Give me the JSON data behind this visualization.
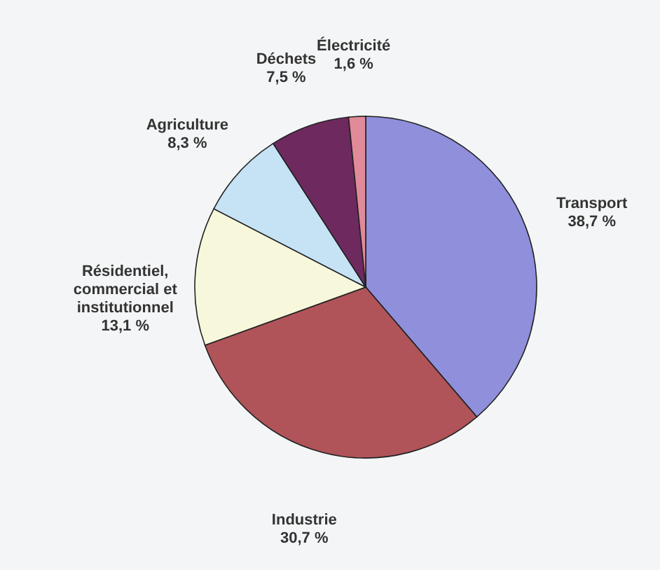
{
  "chart_data": {
    "type": "pie",
    "categories": [
      "Transport",
      "Industrie",
      "Résidentiel,\ncommercial et\ninstitutionnel",
      "Agriculture",
      "Déchets",
      "Électricité"
    ],
    "values": [
      38.7,
      30.7,
      13.1,
      8.3,
      7.5,
      1.6
    ],
    "value_labels": [
      "38,7 %",
      "30,7 %",
      "13,1 %",
      "8,3 %",
      "7,5 %",
      "1,6 %"
    ],
    "colors": [
      "#8f8fdc",
      "#b0545a",
      "#f7f7dc",
      "#c6e3f5",
      "#6e2a5e",
      "#e08a9a"
    ]
  }
}
